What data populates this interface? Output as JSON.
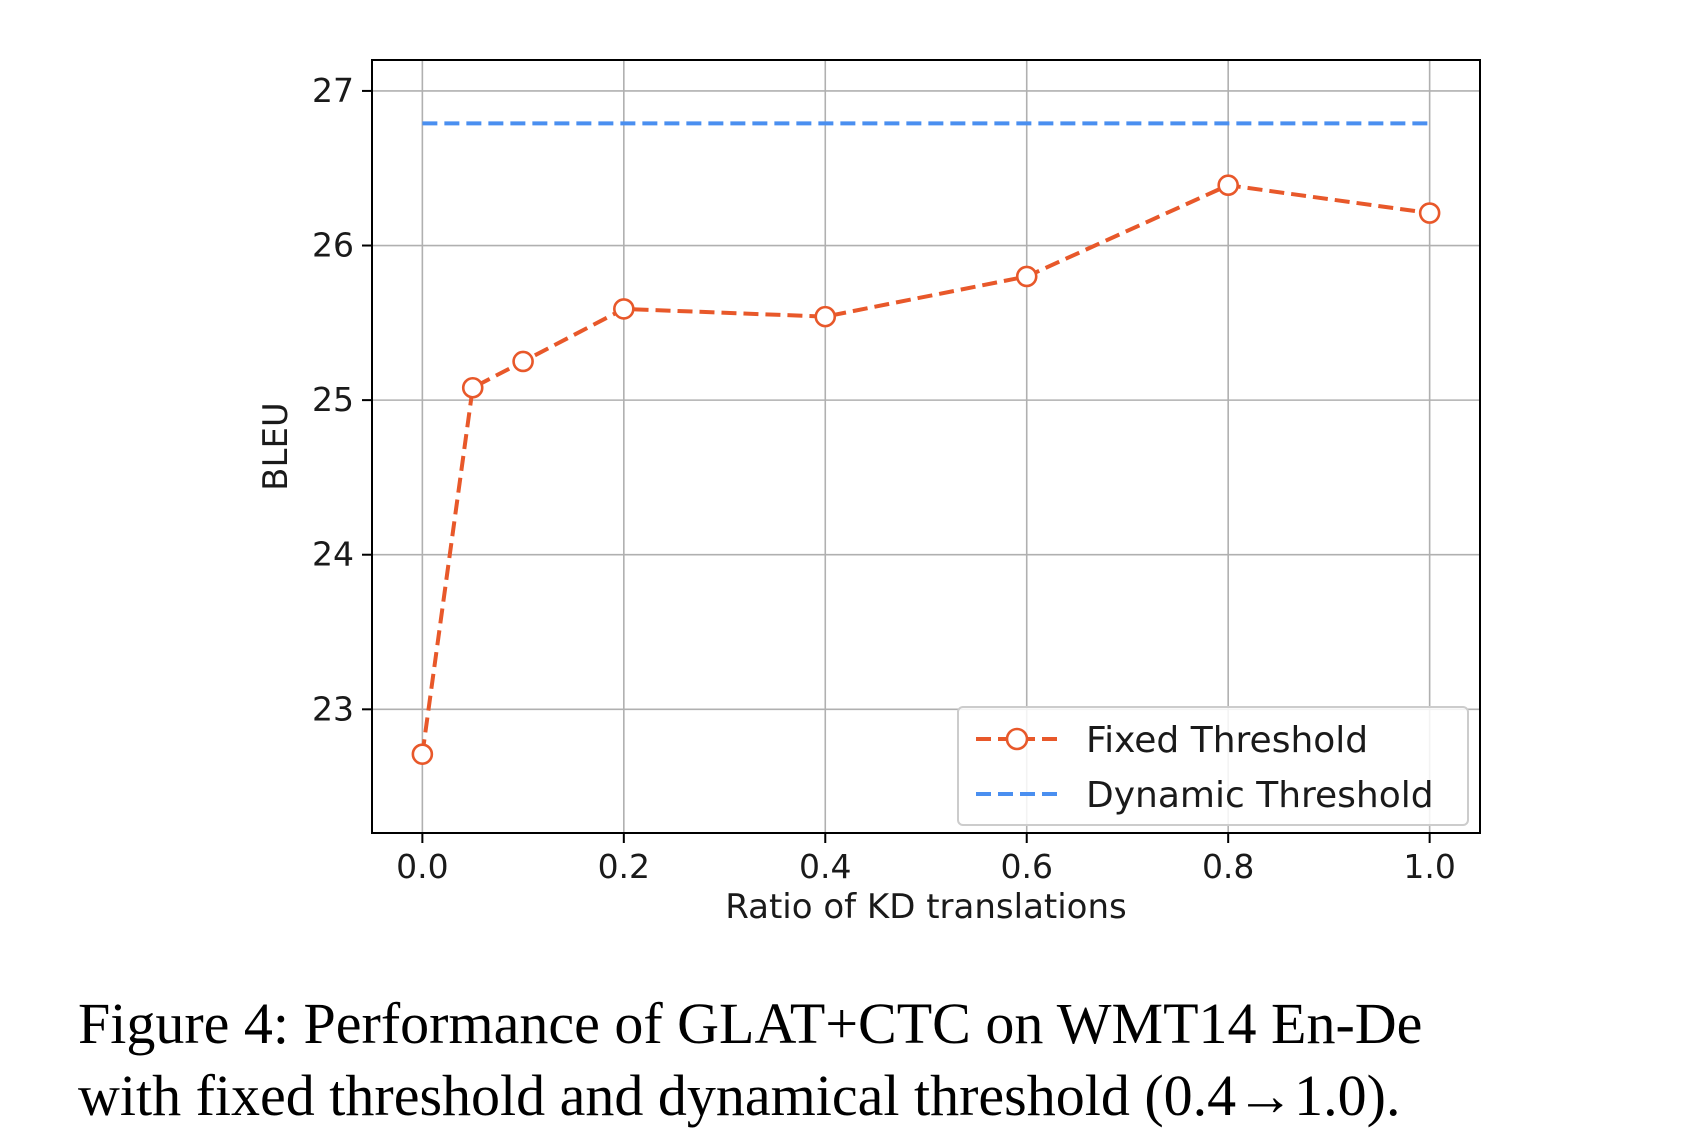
{
  "caption": {
    "line1": "Figure 4: Performance of GLAT+CTC on WMT14 En-De",
    "line2": "with fixed threshold and dynamical threshold (0.4→1.0)."
  },
  "chart_data": {
    "type": "line",
    "xlabel": "Ratio of KD translations",
    "ylabel": "BLEU",
    "xlim": [
      -0.05,
      1.05
    ],
    "ylim": [
      22.2,
      27.2
    ],
    "xticks": [
      "0.0",
      "0.2",
      "0.4",
      "0.6",
      "0.8",
      "1.0"
    ],
    "xtick_values": [
      0.0,
      0.2,
      0.4,
      0.6,
      0.8,
      1.0
    ],
    "yticks": [
      "23",
      "24",
      "25",
      "26",
      "27"
    ],
    "ytick_values": [
      23,
      24,
      25,
      26,
      27
    ],
    "grid": true,
    "legend_position": "lower-right",
    "series": [
      {
        "name": "Fixed Threshold",
        "color": "#e8582a",
        "style": "dashed-with-open-circles",
        "x": [
          0.0,
          0.05,
          0.1,
          0.2,
          0.4,
          0.6,
          0.8,
          1.0
        ],
        "y": [
          22.71,
          25.08,
          25.25,
          25.59,
          25.54,
          25.8,
          26.39,
          26.21
        ]
      },
      {
        "name": "Dynamic Threshold",
        "color": "#4a8ff0",
        "style": "dashed",
        "x": [
          0.0,
          1.0
        ],
        "y": [
          26.79,
          26.79
        ]
      }
    ]
  }
}
